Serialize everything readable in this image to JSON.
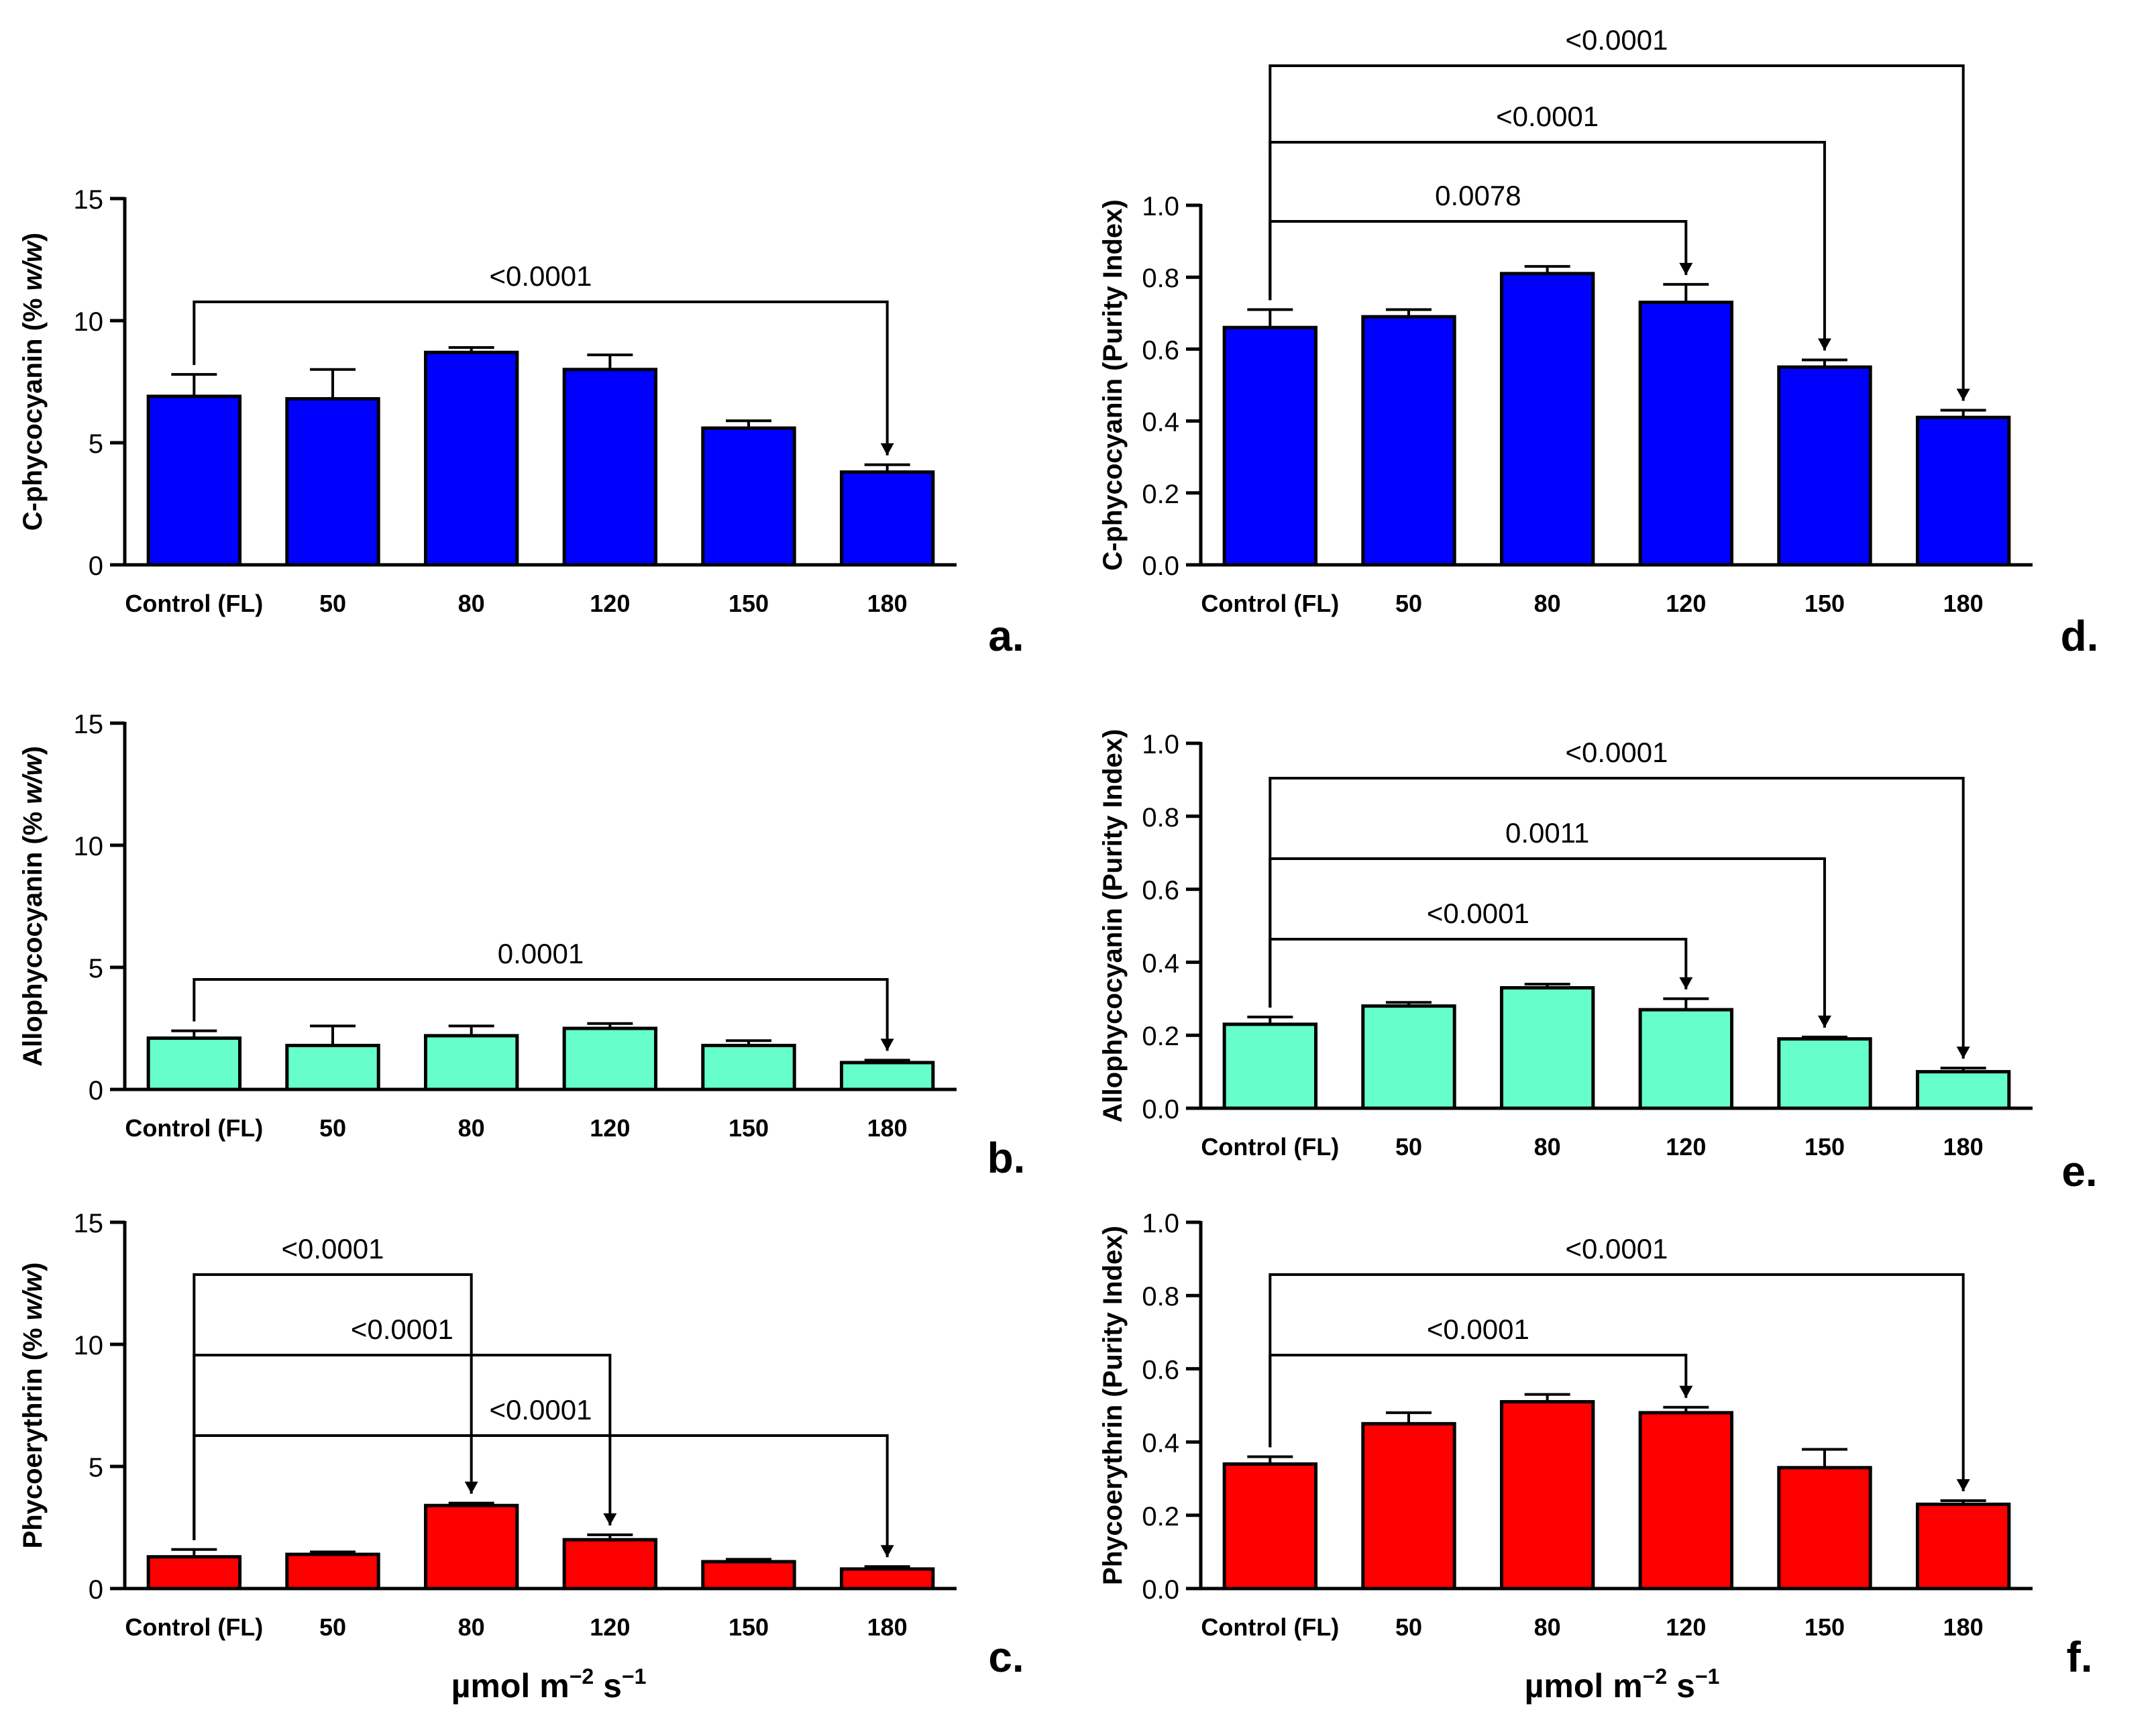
{
  "shared": {
    "categories": [
      "Control (FL)",
      "50",
      "80",
      "120",
      "150",
      "180"
    ],
    "xlabel_main": "µmol m",
    "xlabel_exp1": "−2",
    "xlabel_mid": " s",
    "xlabel_exp2": "−1"
  },
  "chart_data": [
    {
      "type": "bar",
      "panel": "a.",
      "color": "#0000FF",
      "ylabel_plain": "C-phycocyanin (% ",
      "ylabel_italic": "w/w",
      "ylabel_end": ")",
      "ylim": [
        0,
        15
      ],
      "yticks": [
        "0",
        "5",
        "10",
        "15"
      ],
      "ytick_values": [
        0,
        5,
        10,
        15
      ],
      "categories": [
        "Control (FL)",
        "50",
        "80",
        "120",
        "150",
        "180"
      ],
      "values": [
        6.9,
        6.8,
        8.7,
        8.0,
        5.6,
        3.8
      ],
      "errors": [
        0.9,
        1.2,
        0.2,
        0.6,
        0.3,
        0.3
      ],
      "comparisons": [
        {
          "from": 0,
          "to": 5,
          "label": "<0.0001"
        }
      ]
    },
    {
      "type": "bar",
      "panel": "b.",
      "color": "#66FFCC",
      "ylabel_plain": "Allophycocyanin (% ",
      "ylabel_italic": "w/w",
      "ylabel_end": ")",
      "ylim": [
        0,
        15
      ],
      "yticks": [
        "0",
        "5",
        "10",
        "15"
      ],
      "ytick_values": [
        0,
        5,
        10,
        15
      ],
      "categories": [
        "Control (FL)",
        "50",
        "80",
        "120",
        "150",
        "180"
      ],
      "values": [
        2.1,
        1.8,
        2.2,
        2.5,
        1.8,
        1.1
      ],
      "errors": [
        0.3,
        0.8,
        0.4,
        0.2,
        0.2,
        0.1
      ],
      "comparisons": [
        {
          "from": 0,
          "to": 5,
          "label": "0.0001"
        }
      ]
    },
    {
      "type": "bar",
      "panel": "c.",
      "color": "#FF0000",
      "ylabel_plain": "Phycoerythrin (% ",
      "ylabel_italic": "w/w",
      "ylabel_end": ")",
      "ylim": [
        0,
        15
      ],
      "yticks": [
        "0",
        "5",
        "10",
        "15"
      ],
      "ytick_values": [
        0,
        5,
        10,
        15
      ],
      "categories": [
        "Control (FL)",
        "50",
        "80",
        "120",
        "150",
        "180"
      ],
      "values": [
        1.3,
        1.4,
        3.4,
        2.0,
        1.1,
        0.8
      ],
      "errors": [
        0.3,
        0.1,
        0.1,
        0.2,
        0.1,
        0.1
      ],
      "comparisons": [
        {
          "from": 0,
          "to": 2,
          "label": "<0.0001"
        },
        {
          "from": 0,
          "to": 3,
          "label": "<0.0001"
        },
        {
          "from": 0,
          "to": 5,
          "label": "<0.0001"
        }
      ]
    },
    {
      "type": "bar",
      "panel": "d.",
      "color": "#0000FF",
      "ylabel_plain": "C-phycocyanin (Purity Index)",
      "ylabel_italic": "",
      "ylabel_end": "",
      "ylim": [
        0,
        1.0
      ],
      "yticks": [
        "0.0",
        "0.2",
        "0.4",
        "0.6",
        "0.8",
        "1.0"
      ],
      "ytick_values": [
        0,
        0.2,
        0.4,
        0.6,
        0.8,
        1.0
      ],
      "categories": [
        "Control (FL)",
        "50",
        "80",
        "120",
        "150",
        "180"
      ],
      "values": [
        0.66,
        0.69,
        0.81,
        0.73,
        0.55,
        0.41
      ],
      "errors": [
        0.05,
        0.02,
        0.02,
        0.05,
        0.02,
        0.02
      ],
      "comparisons": [
        {
          "from": 0,
          "to": 3,
          "label": "0.0078"
        },
        {
          "from": 0,
          "to": 4,
          "label": "<0.0001"
        },
        {
          "from": 0,
          "to": 5,
          "label": "<0.0001"
        }
      ]
    },
    {
      "type": "bar",
      "panel": "e.",
      "color": "#66FFCC",
      "ylabel_plain": "Allophycocyanin (Purity Index)",
      "ylabel_italic": "",
      "ylabel_end": "",
      "ylim": [
        0,
        1.0
      ],
      "yticks": [
        "0.0",
        "0.2",
        "0.4",
        "0.6",
        "0.8",
        "1.0"
      ],
      "ytick_values": [
        0,
        0.2,
        0.4,
        0.6,
        0.8,
        1.0
      ],
      "categories": [
        "Control (FL)",
        "50",
        "80",
        "120",
        "150",
        "180"
      ],
      "values": [
        0.23,
        0.28,
        0.33,
        0.27,
        0.19,
        0.1
      ],
      "errors": [
        0.02,
        0.01,
        0.01,
        0.03,
        0.005,
        0.01
      ],
      "comparisons": [
        {
          "from": 0,
          "to": 3,
          "label": "<0.0001"
        },
        {
          "from": 0,
          "to": 4,
          "label": "0.0011"
        },
        {
          "from": 0,
          "to": 5,
          "label": "<0.0001"
        }
      ]
    },
    {
      "type": "bar",
      "panel": "f.",
      "color": "#FF0000",
      "ylabel_plain": "Phycoerythrin (Purity Index)",
      "ylabel_italic": "",
      "ylabel_end": "",
      "ylim": [
        0,
        1.0
      ],
      "yticks": [
        "0.0",
        "0.2",
        "0.4",
        "0.6",
        "0.8",
        "1.0"
      ],
      "ytick_values": [
        0,
        0.2,
        0.4,
        0.6,
        0.8,
        1.0
      ],
      "categories": [
        "Control (FL)",
        "50",
        "80",
        "120",
        "150",
        "180"
      ],
      "values": [
        0.34,
        0.45,
        0.51,
        0.48,
        0.33,
        0.23
      ],
      "errors": [
        0.02,
        0.03,
        0.02,
        0.015,
        0.05,
        0.01
      ],
      "comparisons": [
        {
          "from": 0,
          "to": 3,
          "label": "<0.0001"
        },
        {
          "from": 0,
          "to": 5,
          "label": "<0.0001"
        }
      ]
    }
  ]
}
